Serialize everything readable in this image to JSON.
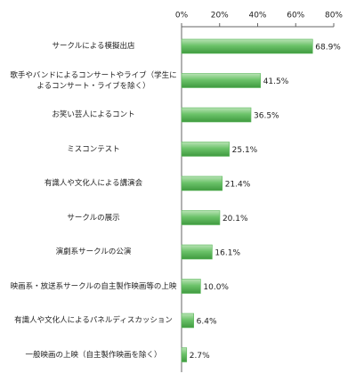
{
  "chart_data": {
    "type": "hbar",
    "categories": [
      "サークルによる模擬出店",
      "歌手やバンドによるコンサートやライブ（学生に\nよるコンサート・ライブを除く）",
      "お笑い芸人によるコント",
      "ミスコンテスト",
      "有識人や文化人による講演会",
      "サークルの展示",
      "演劇系サークルの公演",
      "映画系・放送系サークルの自主製作映画等の上映",
      "有識人や文化人によるパネルディスカッション",
      "一般映画の上映（自主製作映画を除く）"
    ],
    "values": [
      68.9,
      41.5,
      36.5,
      25.1,
      21.4,
      20.1,
      16.1,
      10.0,
      6.4,
      2.7
    ],
    "value_labels": [
      "68.9%",
      "41.5%",
      "36.5%",
      "25.1%",
      "21.4%",
      "20.1%",
      "16.1%",
      "10.0%",
      "6.4%",
      "2.7%"
    ],
    "color": "#5cb85c",
    "xlim": [
      0,
      80
    ],
    "xticks": [
      {
        "value": 0,
        "label": "0%"
      },
      {
        "value": 20,
        "label": "20%"
      },
      {
        "value": 40,
        "label": "40%"
      },
      {
        "value": 60,
        "label": "60%"
      },
      {
        "value": 80,
        "label": "80%"
      }
    ]
  }
}
